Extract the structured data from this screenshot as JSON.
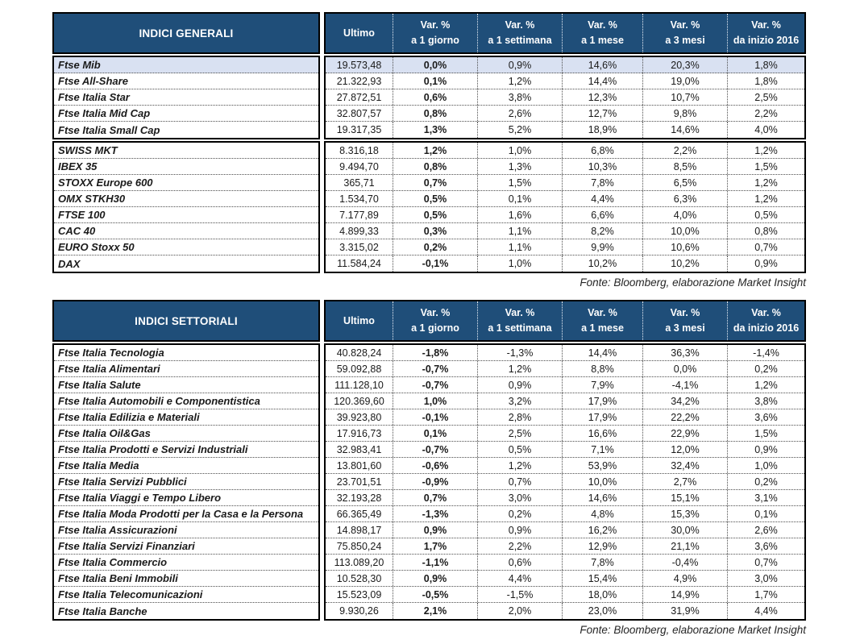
{
  "colors": {
    "header_bg": "#1F4E79",
    "header_text": "#FFFFFF",
    "highlight_row_bg": "#D9E1F2",
    "body_text": "#1A1A1A",
    "border": "#000000"
  },
  "columns": {
    "ultimo_label": "Ultimo",
    "var_columns": [
      {
        "line1": "Var. %",
        "line2": "a 1 giorno"
      },
      {
        "line1": "Var. %",
        "line2": "a 1 settimana"
      },
      {
        "line1": "Var. %",
        "line2": "a 1 mese"
      },
      {
        "line1": "Var. %",
        "line2": "a 3 mesi"
      },
      {
        "line1": "Var. %",
        "line2": "da inizio 2016"
      }
    ]
  },
  "table1": {
    "title": "INDICI GENERALI",
    "source": "Fonte: Bloomberg, elaborazione Market Insight",
    "groups": [
      {
        "rows": [
          {
            "name": "Ftse Mib",
            "ultimo": "19.573,48",
            "vars": [
              "0,0%",
              "0,9%",
              "14,6%",
              "20,3%",
              "1,8%"
            ],
            "highlight": true
          },
          {
            "name": "Ftse All-Share",
            "ultimo": "21.322,93",
            "vars": [
              "0,1%",
              "1,2%",
              "14,4%",
              "19,0%",
              "1,8%"
            ],
            "highlight": false
          },
          {
            "name": "Ftse Italia Star",
            "ultimo": "27.872,51",
            "vars": [
              "0,6%",
              "3,8%",
              "12,3%",
              "10,7%",
              "2,5%"
            ],
            "highlight": false
          },
          {
            "name": "Ftse Italia Mid Cap",
            "ultimo": "32.807,57",
            "vars": [
              "0,8%",
              "2,6%",
              "12,7%",
              "9,8%",
              "2,2%"
            ],
            "highlight": false
          },
          {
            "name": "Ftse Italia Small Cap",
            "ultimo": "19.317,35",
            "vars": [
              "1,3%",
              "5,2%",
              "18,9%",
              "14,6%",
              "4,0%"
            ],
            "highlight": false
          }
        ]
      },
      {
        "rows": [
          {
            "name": "SWISS MKT",
            "ultimo": "8.316,18",
            "vars": [
              "1,2%",
              "1,0%",
              "6,8%",
              "2,2%",
              "1,2%"
            ],
            "highlight": false
          },
          {
            "name": "IBEX 35",
            "ultimo": "9.494,70",
            "vars": [
              "0,8%",
              "1,3%",
              "10,3%",
              "8,5%",
              "1,5%"
            ],
            "highlight": false
          },
          {
            "name": "STOXX Europe 600",
            "ultimo": "365,71",
            "vars": [
              "0,7%",
              "1,5%",
              "7,8%",
              "6,5%",
              "1,2%"
            ],
            "highlight": false
          },
          {
            "name": "OMX STKH30",
            "ultimo": "1.534,70",
            "vars": [
              "0,5%",
              "0,1%",
              "4,4%",
              "6,3%",
              "1,2%"
            ],
            "highlight": false
          },
          {
            "name": "FTSE 100",
            "ultimo": "7.177,89",
            "vars": [
              "0,5%",
              "1,6%",
              "6,6%",
              "4,0%",
              "0,5%"
            ],
            "highlight": false
          },
          {
            "name": "CAC 40",
            "ultimo": "4.899,33",
            "vars": [
              "0,3%",
              "1,1%",
              "8,2%",
              "10,0%",
              "0,8%"
            ],
            "highlight": false
          },
          {
            "name": "EURO Stoxx 50",
            "ultimo": "3.315,02",
            "vars": [
              "0,2%",
              "1,1%",
              "9,9%",
              "10,6%",
              "0,7%"
            ],
            "highlight": false
          },
          {
            "name": "DAX",
            "ultimo": "11.584,24",
            "vars": [
              "-0,1%",
              "1,0%",
              "10,2%",
              "10,2%",
              "0,9%"
            ],
            "highlight": false
          }
        ]
      }
    ]
  },
  "table2": {
    "title": "INDICI SETTORIALI",
    "source": "Fonte: Bloomberg, elaborazione Market Insight",
    "groups": [
      {
        "rows": [
          {
            "name": "Ftse Italia Tecnologia",
            "ultimo": "40.828,24",
            "vars": [
              "-1,8%",
              "-1,3%",
              "14,4%",
              "36,3%",
              "-1,4%"
            ],
            "highlight": false
          },
          {
            "name": "Ftse Italia Alimentari",
            "ultimo": "59.092,88",
            "vars": [
              "-0,7%",
              "1,2%",
              "8,8%",
              "0,0%",
              "0,2%"
            ],
            "highlight": false
          },
          {
            "name": "Ftse Italia Salute",
            "ultimo": "111.128,10",
            "vars": [
              "-0,7%",
              "0,9%",
              "7,9%",
              "-4,1%",
              "1,2%"
            ],
            "highlight": false
          },
          {
            "name": "Ftse Italia Automobili e Componentistica",
            "ultimo": "120.369,60",
            "vars": [
              "1,0%",
              "3,2%",
              "17,9%",
              "34,2%",
              "3,8%"
            ],
            "highlight": false
          },
          {
            "name": "Ftse Italia Edilizia e Materiali",
            "ultimo": "39.923,80",
            "vars": [
              "-0,1%",
              "2,8%",
              "17,9%",
              "22,2%",
              "3,6%"
            ],
            "highlight": false
          },
          {
            "name": "Ftse Italia Oil&Gas",
            "ultimo": "17.916,73",
            "vars": [
              "0,1%",
              "2,5%",
              "16,6%",
              "22,9%",
              "1,5%"
            ],
            "highlight": false
          },
          {
            "name": "Ftse Italia Prodotti e Servizi Industriali",
            "ultimo": "32.983,41",
            "vars": [
              "-0,7%",
              "0,5%",
              "7,1%",
              "12,0%",
              "0,9%"
            ],
            "highlight": false
          },
          {
            "name": "Ftse Italia Media",
            "ultimo": "13.801,60",
            "vars": [
              "-0,6%",
              "1,2%",
              "53,9%",
              "32,4%",
              "1,0%"
            ],
            "highlight": false
          },
          {
            "name": "Ftse Italia Servizi Pubblici",
            "ultimo": "23.701,51",
            "vars": [
              "-0,9%",
              "0,7%",
              "10,0%",
              "2,7%",
              "0,2%"
            ],
            "highlight": false
          },
          {
            "name": "Ftse Italia Viaggi e Tempo Libero",
            "ultimo": "32.193,28",
            "vars": [
              "0,7%",
              "3,0%",
              "14,6%",
              "15,1%",
              "3,1%"
            ],
            "highlight": false
          },
          {
            "name": "Ftse Italia Moda Prodotti per la Casa e la Persona",
            "ultimo": "66.365,49",
            "vars": [
              "-1,3%",
              "0,2%",
              "4,8%",
              "15,3%",
              "0,1%"
            ],
            "highlight": false
          },
          {
            "name": "Ftse Italia Assicurazioni",
            "ultimo": "14.898,17",
            "vars": [
              "0,9%",
              "0,9%",
              "16,2%",
              "30,0%",
              "2,6%"
            ],
            "highlight": false
          },
          {
            "name": "Ftse Italia Servizi Finanziari",
            "ultimo": "75.850,24",
            "vars": [
              "1,7%",
              "2,2%",
              "12,9%",
              "21,1%",
              "3,6%"
            ],
            "highlight": false
          },
          {
            "name": "Ftse Italia Commercio",
            "ultimo": "113.089,20",
            "vars": [
              "-1,1%",
              "0,6%",
              "7,8%",
              "-0,4%",
              "0,7%"
            ],
            "highlight": false
          },
          {
            "name": "Ftse Italia Beni Immobili",
            "ultimo": "10.528,30",
            "vars": [
              "0,9%",
              "4,4%",
              "15,4%",
              "4,9%",
              "3,0%"
            ],
            "highlight": false
          },
          {
            "name": "Ftse Italia Telecomunicazioni",
            "ultimo": "15.523,09",
            "vars": [
              "-0,5%",
              "-1,5%",
              "18,0%",
              "14,9%",
              "1,7%"
            ],
            "highlight": false
          },
          {
            "name": "Ftse Italia Banche",
            "ultimo": "9.930,26",
            "vars": [
              "2,1%",
              "2,0%",
              "23,0%",
              "31,9%",
              "4,4%"
            ],
            "highlight": false
          }
        ]
      }
    ]
  }
}
